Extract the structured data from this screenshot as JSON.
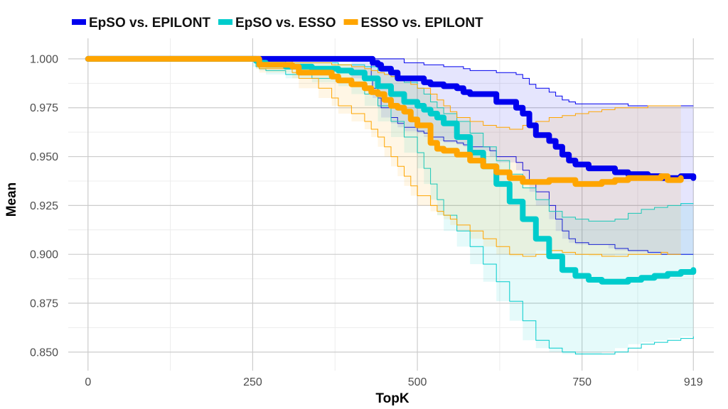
{
  "chart_data": {
    "type": "line",
    "xlabel": "TopK",
    "ylabel": "Mean",
    "xlim": [
      -30,
      950
    ],
    "ylim": [
      0.8405,
      1.0105
    ],
    "x_ticks": [
      0,
      250,
      500,
      750,
      919
    ],
    "x_tick_labels": [
      "0",
      "250",
      "500",
      "750",
      "919"
    ],
    "y_ticks": [
      0.85,
      0.875,
      0.9,
      0.925,
      0.95,
      0.975,
      1.0
    ],
    "y_tick_labels": [
      "0.850",
      "0.875",
      "0.900",
      "0.925",
      "0.950",
      "0.975",
      "1.000"
    ],
    "grid": true,
    "legend_position": "top-left",
    "series": [
      {
        "name": "EpSO vs. EPILONT",
        "color": "#0000ee",
        "x": [
          0,
          255,
          260,
          300,
          400,
          430,
          432,
          440,
          445,
          460,
          470,
          480,
          500,
          510,
          520,
          540,
          560,
          570,
          580,
          610,
          620,
          650,
          660,
          670,
          680,
          700,
          710,
          720,
          730,
          740,
          760,
          790,
          800,
          820,
          850,
          870,
          900,
          919
        ],
        "y": [
          1.0,
          1.0,
          1.0,
          1.0,
          1.0,
          1.0,
          0.998,
          0.997,
          0.995,
          0.993,
          0.99,
          0.99,
          0.99,
          0.988,
          0.987,
          0.986,
          0.985,
          0.983,
          0.982,
          0.982,
          0.978,
          0.975,
          0.972,
          0.966,
          0.961,
          0.958,
          0.955,
          0.951,
          0.948,
          0.946,
          0.944,
          0.944,
          0.942,
          0.941,
          0.94,
          0.939,
          0.94,
          0.939
        ],
        "lower": [
          1.0,
          1.0,
          1.0,
          1.0,
          1.0,
          0.99,
          0.985,
          0.98,
          0.975,
          0.97,
          0.967,
          0.965,
          0.963,
          0.962,
          0.96,
          0.958,
          0.957,
          0.956,
          0.955,
          0.953,
          0.95,
          0.947,
          0.943,
          0.938,
          0.932,
          0.925,
          0.918,
          0.912,
          0.908,
          0.906,
          0.905,
          0.905,
          0.903,
          0.902,
          0.901,
          0.9,
          0.9,
          0.9
        ],
        "upper": [
          1.0,
          1.0,
          1.0,
          1.0,
          1.0,
          1.0,
          1.0,
          1.0,
          1.0,
          1.0,
          1.0,
          0.998,
          0.998,
          0.997,
          0.997,
          0.996,
          0.996,
          0.995,
          0.994,
          0.994,
          0.993,
          0.992,
          0.99,
          0.987,
          0.985,
          0.983,
          0.981,
          0.979,
          0.978,
          0.977,
          0.977,
          0.977,
          0.977,
          0.976,
          0.976,
          0.976,
          0.976,
          0.976
        ]
      },
      {
        "name": "EpSO vs. ESSO",
        "color": "#00cccc",
        "x": [
          0,
          250,
          255,
          260,
          270,
          300,
          340,
          380,
          400,
          420,
          440,
          460,
          480,
          500,
          510,
          520,
          530,
          540,
          560,
          580,
          600,
          620,
          640,
          660,
          680,
          700,
          720,
          740,
          760,
          780,
          800,
          820,
          840,
          860,
          880,
          900,
          919
        ],
        "y": [
          1.0,
          1.0,
          0.999,
          0.998,
          0.997,
          0.996,
          0.995,
          0.994,
          0.993,
          0.99,
          0.986,
          0.982,
          0.978,
          0.976,
          0.974,
          0.972,
          0.97,
          0.967,
          0.96,
          0.952,
          0.945,
          0.936,
          0.927,
          0.918,
          0.908,
          0.899,
          0.892,
          0.889,
          0.887,
          0.886,
          0.886,
          0.887,
          0.888,
          0.889,
          0.89,
          0.891,
          0.892
        ],
        "lower": [
          1.0,
          1.0,
          0.996,
          0.995,
          0.994,
          0.992,
          0.99,
          0.988,
          0.986,
          0.982,
          0.976,
          0.968,
          0.96,
          0.952,
          0.944,
          0.936,
          0.928,
          0.92,
          0.912,
          0.904,
          0.895,
          0.886,
          0.876,
          0.866,
          0.856,
          0.852,
          0.85,
          0.849,
          0.849,
          0.849,
          0.85,
          0.852,
          0.854,
          0.855,
          0.856,
          0.857,
          0.858
        ],
        "upper": [
          1.0,
          1.0,
          1.0,
          1.0,
          1.0,
          0.998,
          0.998,
          0.997,
          0.997,
          0.996,
          0.994,
          0.991,
          0.988,
          0.985,
          0.982,
          0.978,
          0.975,
          0.972,
          0.968,
          0.962,
          0.955,
          0.948,
          0.941,
          0.934,
          0.928,
          0.922,
          0.919,
          0.918,
          0.917,
          0.917,
          0.918,
          0.921,
          0.923,
          0.924,
          0.925,
          0.926,
          0.926
        ]
      },
      {
        "name": "ESSO vs. EPILONT",
        "color": "#ffa500",
        "x": [
          0,
          255,
          260,
          310,
          320,
          350,
          370,
          380,
          400,
          420,
          430,
          440,
          450,
          460,
          470,
          480,
          490,
          500,
          520,
          530,
          540,
          550,
          560,
          580,
          600,
          620,
          640,
          660,
          680,
          700,
          720,
          740,
          760,
          780,
          800,
          820,
          850,
          870,
          880,
          900
        ],
        "y": [
          1.0,
          1.0,
          0.997,
          0.996,
          0.993,
          0.993,
          0.991,
          0.989,
          0.987,
          0.985,
          0.983,
          0.982,
          0.979,
          0.976,
          0.975,
          0.973,
          0.969,
          0.966,
          0.957,
          0.954,
          0.953,
          0.953,
          0.951,
          0.948,
          0.945,
          0.942,
          0.939,
          0.937,
          0.937,
          0.938,
          0.938,
          0.936,
          0.936,
          0.937,
          0.938,
          0.939,
          0.939,
          0.94,
          0.938,
          0.939
        ],
        "lower": [
          1.0,
          1.0,
          0.995,
          0.993,
          0.99,
          0.985,
          0.98,
          0.976,
          0.972,
          0.968,
          0.964,
          0.96,
          0.955,
          0.95,
          0.945,
          0.94,
          0.935,
          0.93,
          0.925,
          0.922,
          0.92,
          0.918,
          0.915,
          0.912,
          0.908,
          0.904,
          0.9,
          0.899,
          0.9,
          0.902,
          0.901,
          0.9,
          0.9,
          0.899,
          0.899,
          0.9,
          0.9,
          0.901,
          0.9,
          0.9
        ],
        "upper": [
          1.0,
          1.0,
          0.999,
          0.998,
          0.998,
          0.998,
          0.997,
          0.997,
          0.996,
          0.995,
          0.994,
          0.993,
          0.992,
          0.991,
          0.99,
          0.989,
          0.987,
          0.985,
          0.982,
          0.979,
          0.976,
          0.973,
          0.97,
          0.968,
          0.966,
          0.965,
          0.964,
          0.966,
          0.968,
          0.97,
          0.971,
          0.972,
          0.973,
          0.974,
          0.975,
          0.975,
          0.976,
          0.976,
          0.976,
          0.976
        ]
      }
    ]
  }
}
